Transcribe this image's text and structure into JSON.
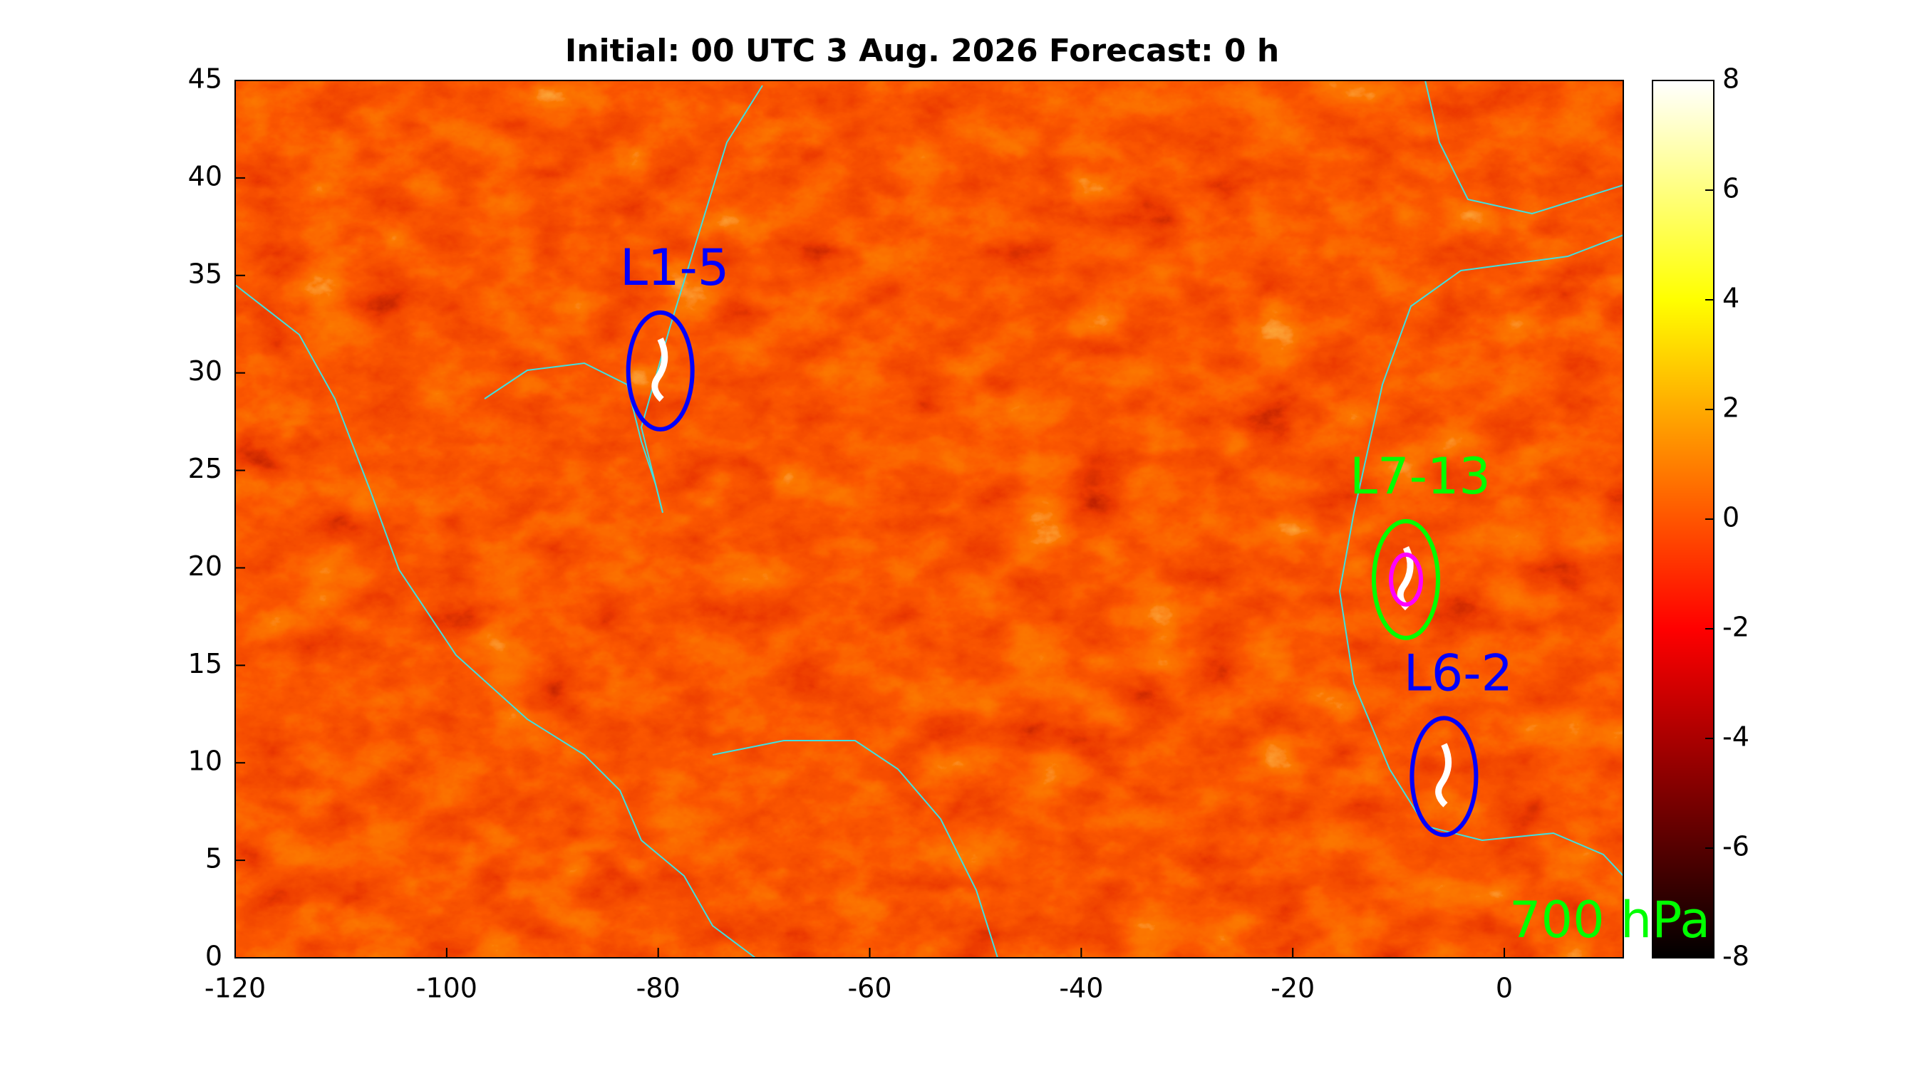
{
  "chart_data": {
    "type": "heatmap-map",
    "title": "Initial: 00 UTC 3 Aug. 2026 Forecast: 0 h",
    "xlim": [
      -120,
      11.25
    ],
    "ylim": [
      0,
      45
    ],
    "xticks": [
      -120,
      -100,
      -80,
      -60,
      -40,
      -20,
      0
    ],
    "yticks": [
      0,
      5,
      10,
      15,
      20,
      25,
      30,
      35,
      40,
      45
    ],
    "colormap": "hot",
    "clim": [
      -8,
      8
    ],
    "cticks": [
      -8,
      -6,
      -4,
      -2,
      0,
      2,
      4,
      6,
      8
    ],
    "coastline_color": "#40e0e0",
    "markers": [
      {
        "label": "L1-5",
        "lon": -79.8,
        "lat": 30.1,
        "color": "#0000ff"
      },
      {
        "label": "L7-13",
        "lon": -9.3,
        "lat": 19.4,
        "color": "#00ff00",
        "inner_color": "#ff00ff"
      },
      {
        "label": "L6-2",
        "lon": -5.7,
        "lat": 9.3,
        "color": "#0000ff"
      }
    ],
    "level_label": "700 hPa",
    "level_label_color": "#00ff00"
  }
}
